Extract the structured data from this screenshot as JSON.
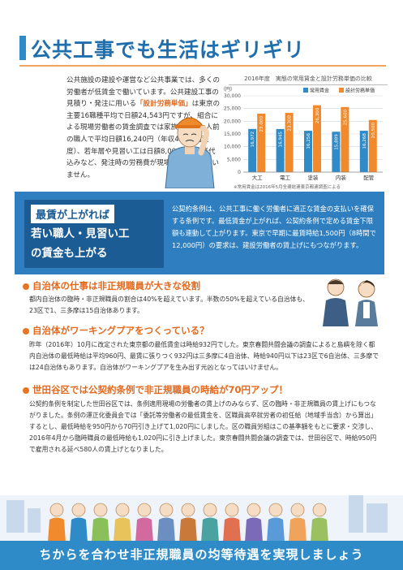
{
  "title": "公共工事でも生活はギリギリ",
  "intro": {
    "p1": "公共施設の建設や運営など公共事業では、多くの労働者が低賃金で働いています。公共建設工事の見積り・発注に用いる",
    "p1_hl": "「設計労務単価」",
    "p2": "は東京の主要16職種平均で日額24,543円ですが、組合による現場労働者の賃金調査では家族もいる一人前の職人で平均日額16,240円（年収400万円程度）、若年層や見習い工は日額8,000円で残業代込みなど、発注時の労務費が現場で支払われていません。"
  },
  "chart_data": {
    "type": "bar",
    "title": "2016年度　実態の常用賃金と設計労務単価の比較",
    "categories": [
      "大工",
      "電工",
      "塗装",
      "内装",
      "配管"
    ],
    "series": [
      {
        "name": "常用賃金",
        "values": [
          16972,
          16945,
          16256,
          15889,
          16268
        ],
        "labels": [
          "16,972",
          "16,945",
          "16,256",
          "15,889",
          "16,268"
        ]
      },
      {
        "name": "設計労務単価",
        "values": [
          23000,
          23300,
          26300,
          25600,
          20500
        ],
        "labels": [
          "23,000",
          "23,300",
          "26,300",
          "25,600",
          "20,500"
        ]
      }
    ],
    "ylabel": "（円）",
    "ylim": [
      0,
      30000
    ],
    "yticks": [
      "30,000",
      "25,000",
      "20,000",
      "15,000",
      "10,000",
      "5,000",
      "0"
    ],
    "yticks_values": [
      30000,
      25000,
      20000,
      15000,
      10000,
      5000,
      0
    ],
    "colors": {
      "常用賃金": "#2e8bc8",
      "設計労務単価": "#f08a2c"
    },
    "legend": "top-right",
    "note": "※常用賃金は2016年5月全建総連東京都連調査による"
  },
  "band": {
    "badge": "最賃が上がれば",
    "h1": "若い職人・見習い工",
    "h2": "の賃金も上がる",
    "body": "公契約条例は、公共工事に働く労働者に適正な賃金の支払いを確保する条例です。最低賃金が上がれば、公契約条例で定める賃金下限額も連動して上がります。東京で早期に最賃時給1,500円（8時間で12,000円）の要求は、建設労働者の賃上げにもつながります。"
  },
  "sections": [
    {
      "heading": "自治体の仕事は非正規職員が大きな役割",
      "body": "都内自治体の臨時・非正規職員の割合は40%を超えています。半数の50%を超えている自治体も、23区で1、三多摩は15自治体あります。"
    },
    {
      "heading": "自治体がワーキングプアをつくっている？",
      "body": "昨年（2016年）10月に改定された東京都の最低賃金は時給932円でした。東京春闘共闘会議の調査によると島嶼を除く都内自治体の最低時給は平均960円、最賃に張りつく932円は三多摩に4自治体、時給940円以下は23区で6自治体、三多摩では24自治体もあります。自治体がワーキングプアを生み出す元凶となってはいけません。"
    },
    {
      "heading": "世田谷区では公契約条例で非正規職員の時給が70円アップ！",
      "body": "公契約条例を制定した世田谷区では、条例適用現場の労働者の賃上げのみならず、区の臨時・非正規職員の賃上げにもつながりました。条例の運正化委員会では「委託等労働者の最低賃金を、区職員高卒就労者の初任給（地域手当含）から算出」するとし、最低時給を950円から70円引き上げて1,020円にしました。区の職員労組はこの基準額をもとに要求・交渉し、2016年4月から臨時職員の最低時給も1,020円に引き上げました。東京春闘共闘会議の調査では、世田谷区で、時給950円で雇用される延べ580人の賃上げとなりました。"
    }
  ],
  "bottom": "ちからを合わせ非正規職員の均等待遇を実現しましょう"
}
